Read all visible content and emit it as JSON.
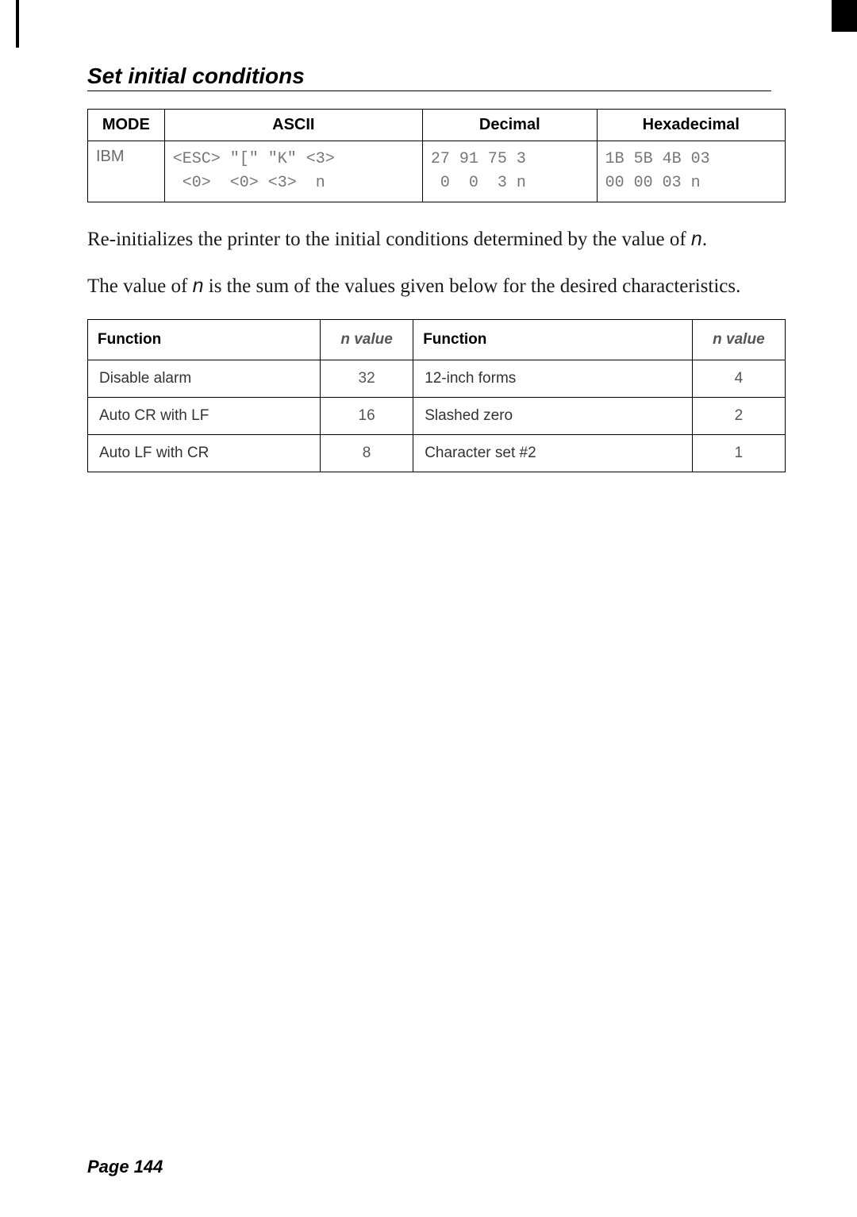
{
  "title": "Set initial conditions",
  "code_table": {
    "headers": [
      "MODE",
      "ASCII",
      "Decimal",
      "Hexadecimal"
    ],
    "mode": "IBM",
    "ascii_line1": "<ESC> \"[\" \"K\" <3>",
    "ascii_line2": " <0>  <0> <3>  n",
    "dec_line1": "27 91 75 3",
    "dec_line2": " 0  0  3 n",
    "hex_line1": "1B 5B 4B 03",
    "hex_line2": "00 00 03 n"
  },
  "para1_a": "Re-initializes the printer to the initial conditions deter­mined by the value of ",
  "para1_n": "n",
  "para1_b": ".",
  "para2_a": "The value of ",
  "para2_n": "n",
  "para2_b": " is the sum of the values given below for the desired characteristics.",
  "func_table": {
    "headers": [
      "Function",
      "n value",
      "Function",
      "n value"
    ],
    "rows": [
      [
        "Disable alarm",
        "32",
        "12-inch forms",
        "4"
      ],
      [
        "Auto CR with LF",
        "16",
        "Slashed zero",
        "2"
      ],
      [
        "Auto LF with CR",
        "8",
        "Character set #2",
        "1"
      ]
    ]
  },
  "footer": "Page 144"
}
